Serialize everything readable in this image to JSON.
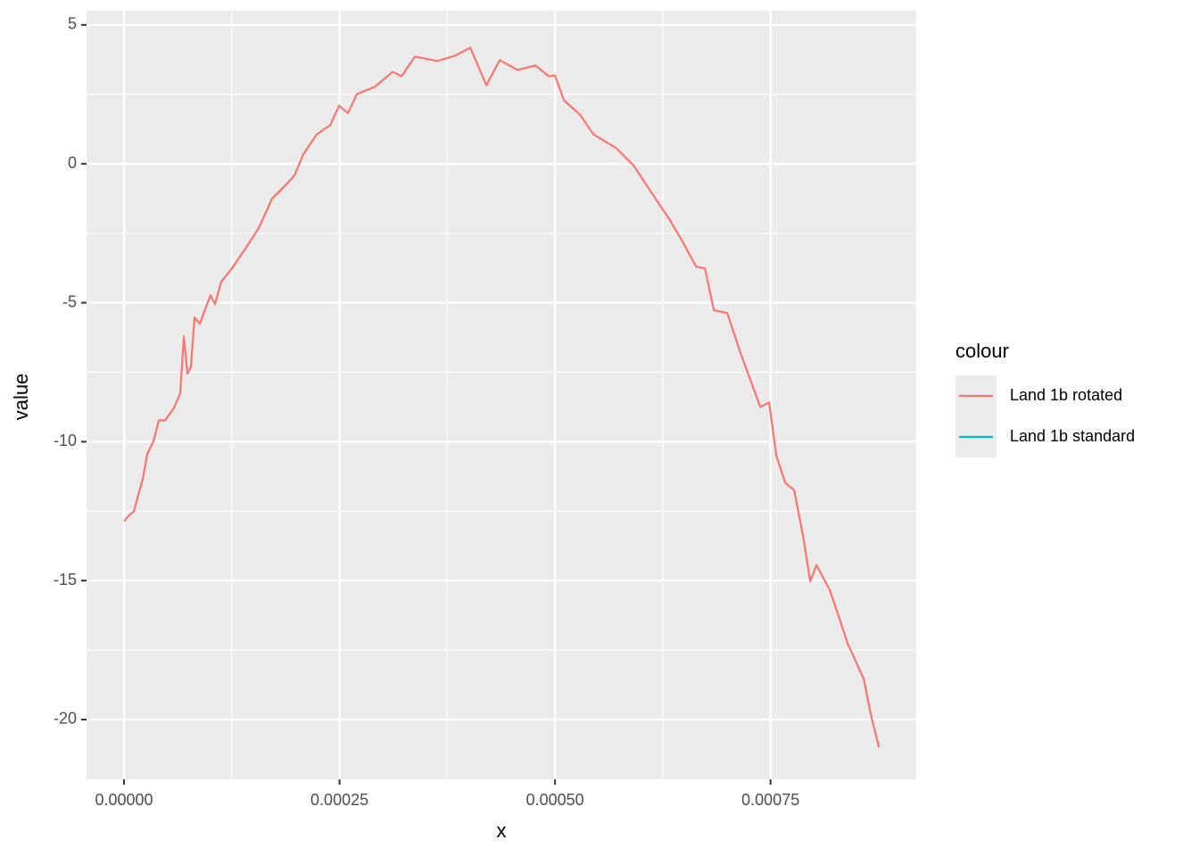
{
  "chart_data": {
    "type": "line",
    "x_label": "x",
    "y_label": "value",
    "legend_title": "colour",
    "legend": "right",
    "grid": true,
    "xlim": [
      -4.35e-05,
      0.000919
    ],
    "ylim": [
      -22.15,
      5.51
    ],
    "xticks": [
      {
        "value": 0,
        "label": "0.00000"
      },
      {
        "value": 0.00025,
        "label": "0.00025"
      },
      {
        "value": 0.0005,
        "label": "0.00050"
      },
      {
        "value": 0.00075,
        "label": "0.00075"
      }
    ],
    "yticks": [
      5,
      0,
      -5,
      -10,
      -15,
      -20
    ],
    "x": [
      0,
      6.2e-06,
      1.14e-05,
      1.66e-05,
      2.17e-05,
      2.69e-05,
      3.42e-05,
      4.04e-05,
      4.76e-05,
      5.8e-05,
      6.52e-05,
      6.94e-05,
      7.35e-05,
      7.76e-05,
      8.18e-05,
      8.8e-05,
      9.42e-05,
      0.0001004,
      0.0001056,
      0.0001128,
      0.0001253,
      0.0001408,
      0.0001563,
      0.0001718,
      0.0001874,
      0.0001977,
      0.0002081,
      0.0002236,
      0.0002391,
      0.0002495,
      0.0002598,
      0.0002702,
      0.0002909,
      0.0003116,
      0.0003219,
      0.0003375,
      0.0003634,
      0.0003841,
      0.0004017,
      0.0004203,
      0.0004358,
      0.0004565,
      0.0004772,
      0.0004928,
      0.0005,
      0.0005104,
      0.000529,
      0.0005445,
      0.0005704,
      0.0005911,
      0.0006118,
      0.0006325,
      0.000648,
      0.0006636,
      0.0006739,
      0.0006843,
      0.0006998,
      0.0007153,
      0.0007381,
      0.0007484,
      0.0007567,
      0.0007671,
      0.0007774,
      0.0007878,
      0.0007961,
      0.0008033,
      0.0008188,
      0.0008292,
      0.0008395,
      0.0008499,
      0.0008582,
      0.0008665,
      0.0008758
    ],
    "series": [
      {
        "name": "Land 1b rotated",
        "color": "#F8766D",
        "values": [
          -12.86,
          -12.64,
          -12.51,
          -11.9,
          -11.35,
          -10.45,
          -9.97,
          -9.23,
          -9.23,
          -8.78,
          -8.26,
          -6.21,
          -7.56,
          -7.3,
          -5.53,
          -5.76,
          -5.22,
          -4.73,
          -5.05,
          -4.24,
          -3.76,
          -3.05,
          -2.31,
          -1.25,
          -0.77,
          -0.42,
          0.35,
          1.06,
          1.39,
          2.09,
          1.83,
          2.51,
          2.77,
          3.31,
          3.15,
          3.86,
          3.7,
          3.89,
          4.18,
          2.83,
          3.73,
          3.38,
          3.54,
          3.15,
          3.18,
          2.28,
          1.77,
          1.06,
          0.58,
          -0.06,
          -1.03,
          -1.99,
          -2.8,
          -3.7,
          -3.76,
          -5.27,
          -5.37,
          -6.82,
          -8.75,
          -8.59,
          -10.51,
          -11.48,
          -11.74,
          -13.41,
          -15.02,
          -14.44,
          -15.34,
          -16.3,
          -17.27,
          -17.97,
          -18.55,
          -19.84,
          -21.0
        ]
      },
      {
        "name": "Land 1b standard",
        "color": "#00BFC4",
        "values": [
          null,
          null,
          null,
          null,
          null,
          null,
          null,
          null,
          null,
          null,
          null,
          null,
          null,
          null,
          null,
          null,
          null,
          null,
          null,
          null,
          null,
          null,
          null,
          null,
          null,
          null,
          null,
          null,
          null,
          null,
          null,
          null,
          null,
          null,
          null,
          null,
          null,
          null,
          null,
          null,
          null,
          null,
          null,
          null,
          null,
          null,
          null,
          null,
          null,
          null,
          null,
          null,
          null,
          null,
          null,
          null,
          null,
          null,
          null,
          null,
          null,
          null,
          null,
          null,
          null,
          null,
          null,
          null,
          null,
          null,
          null,
          null,
          null
        ]
      }
    ]
  }
}
